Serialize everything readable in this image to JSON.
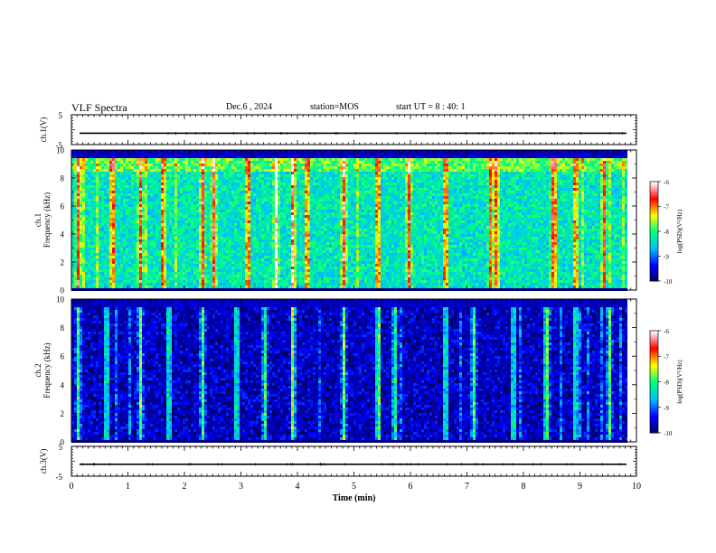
{
  "header": {
    "title": "VLF Spectra",
    "date": "Dec.6 , 2024",
    "station": "station=MOS",
    "start_ut": "start UT = 8 : 40: 1"
  },
  "chart_data": [
    {
      "type": "line",
      "panel": "ch1-waveform",
      "ylabel": "ch.1(V)",
      "ylim": [
        -5,
        5
      ],
      "yticks": [
        "5",
        "-5"
      ],
      "series": [
        {
          "values_constant": -1.2
        }
      ],
      "note_color": "#000000"
    },
    {
      "type": "heatmap",
      "panel": "ch1-spectrogram",
      "ylabel_top": "ch.1",
      "ylabel": "Frequency (kHz)",
      "ylim": [
        0,
        10
      ],
      "yticks": [
        "0",
        "2",
        "4",
        "6",
        "8",
        "10"
      ],
      "xlim": [
        0,
        10
      ],
      "colorbar": {
        "label": "log(PSD)(V²/Hz)",
        "range": [
          -10,
          -6
        ],
        "ticks": [
          "-6",
          "-7",
          "-8",
          "-9",
          "-10"
        ]
      },
      "base_level": -8.3,
      "intense_minutes": [
        0.1,
        0.7,
        1.2,
        1.6,
        2.3,
        2.5,
        3.1,
        3.6,
        3.9,
        4.15,
        4.8,
        5.4,
        5.95,
        6.6,
        7.4,
        7.5,
        8.5,
        8.9,
        9.4
      ]
    },
    {
      "type": "heatmap",
      "panel": "ch2-spectrogram",
      "ylabel_top": "ch.2",
      "ylabel": "Frequency (kHz)",
      "ylim": [
        0,
        10
      ],
      "yticks": [
        "0",
        "2",
        "4",
        "6",
        "8",
        "10"
      ],
      "xlim": [
        0,
        10
      ],
      "colorbar": {
        "label": "log(PSD)(V²/Hz)",
        "range": [
          -10,
          -6
        ],
        "ticks": [
          "-6",
          "-7",
          "-8",
          "-9",
          "-10"
        ]
      },
      "base_level": -9.6,
      "intense_minutes": [
        0.1,
        0.6,
        1.2,
        1.7,
        2.3,
        2.9,
        3.4,
        3.9,
        4.8,
        5.4,
        5.7,
        6.6,
        7.1,
        7.8,
        8.4,
        8.9,
        9.5
      ]
    },
    {
      "type": "line",
      "panel": "ch3-waveform",
      "ylabel": "ch.3(V)",
      "ylim": [
        -5,
        5
      ],
      "yticks": [
        "5",
        "-5"
      ],
      "xlabel": "Time (min)",
      "xlim": [
        0,
        10
      ],
      "xticks": [
        "0",
        "1",
        "2",
        "3",
        "4",
        "5",
        "6",
        "7",
        "8",
        "9",
        "10"
      ],
      "series": [
        {
          "values_constant": -1.0
        }
      ]
    }
  ],
  "colors": {
    "scale": [
      "#000060",
      "#0000ff",
      "#00c0ff",
      "#00ff80",
      "#ffff00",
      "#ff0000",
      "#ffffff"
    ],
    "background": "#ffffff",
    "axis": "#000000"
  }
}
